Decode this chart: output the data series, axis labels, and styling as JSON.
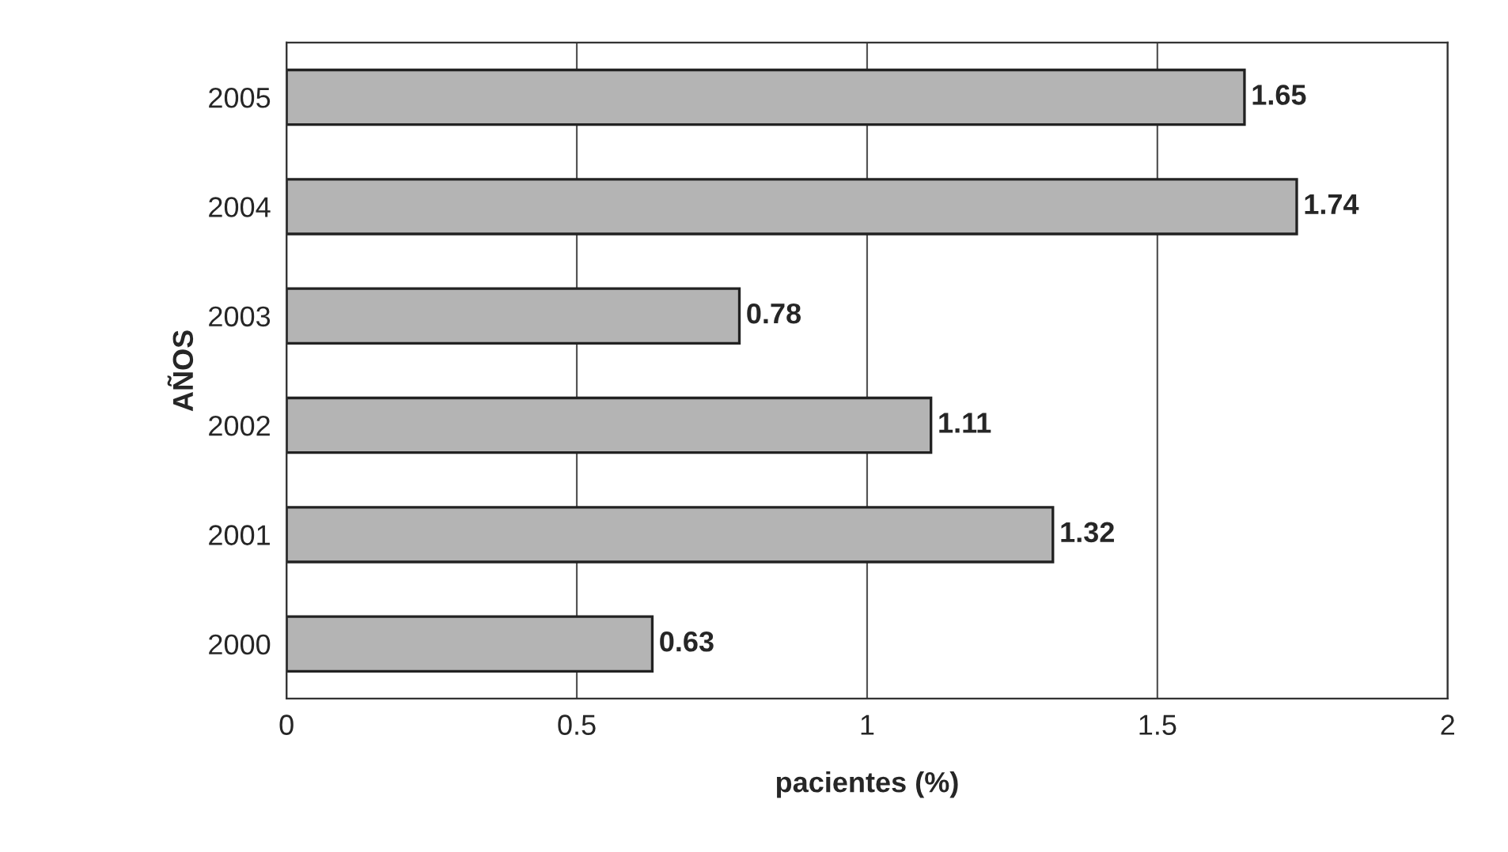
{
  "chart_data": {
    "type": "bar",
    "orientation": "horizontal",
    "categories": [
      "2005",
      "2004",
      "2003",
      "2002",
      "2001",
      "2000"
    ],
    "values": [
      1.65,
      1.74,
      0.78,
      1.11,
      1.32,
      0.63
    ],
    "color": "#b4b4b4",
    "xlabel": "pacientes (%)",
    "ylabel": "AÑOS",
    "xlim": [
      0,
      2
    ],
    "xticks": [
      0,
      0.5,
      1,
      1.5,
      2
    ],
    "grid": "x",
    "data_labels": true
  }
}
